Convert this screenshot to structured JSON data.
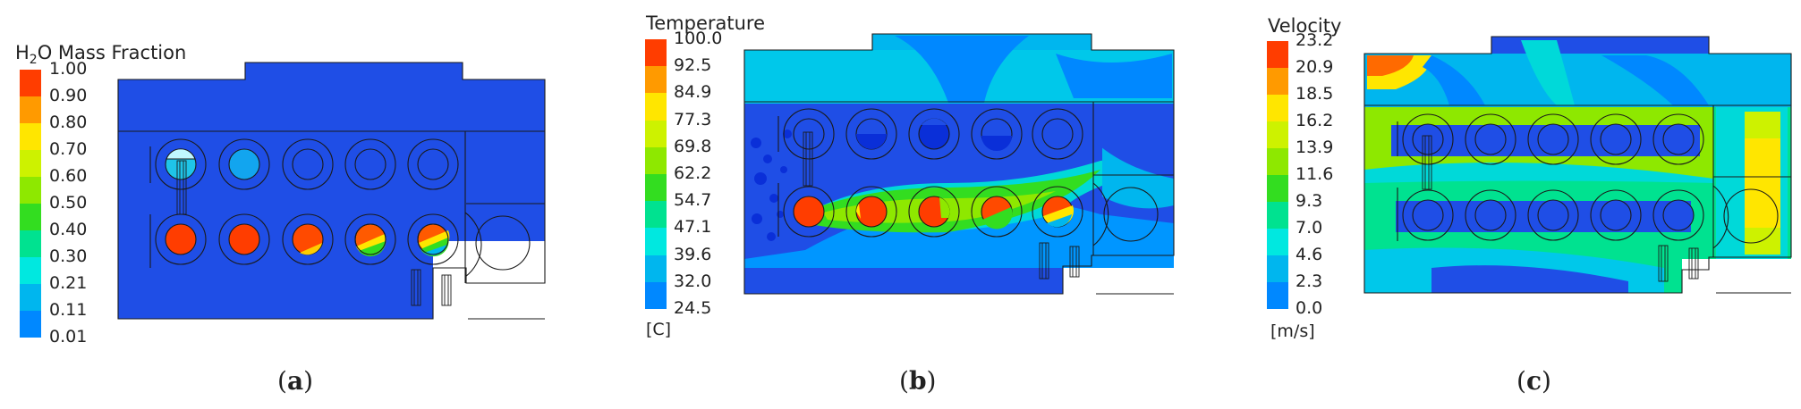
{
  "panels": [
    {
      "caption_letter": "a",
      "legend_title_pre": "H",
      "legend_title_sub": "2",
      "legend_title_post": "O Mass Fraction",
      "unit": "",
      "ticks": [
        "1.00",
        "0.90",
        "0.80",
        "0.70",
        "0.60",
        "0.50",
        "0.40",
        "0.30",
        "0.21",
        "0.11",
        "0.01"
      ],
      "colors": [
        "#ff3d00",
        "#ff9a00",
        "#ffe600",
        "#cdf200",
        "#8ee800",
        "#33dd20",
        "#00e290",
        "#00e8e0",
        "#00b6ee",
        "#0088ff"
      ]
    },
    {
      "caption_letter": "b",
      "legend_title": "Temperature",
      "unit": "[C]",
      "ticks": [
        "100.0",
        "92.5",
        "84.9",
        "77.3",
        "69.8",
        "62.2",
        "54.7",
        "47.1",
        "39.6",
        "32.0",
        "24.5"
      ],
      "colors": [
        "#ff3d00",
        "#ff9a00",
        "#ffe600",
        "#cdf200",
        "#8ee800",
        "#33dd20",
        "#00e290",
        "#00e8e0",
        "#00b6ee",
        "#0088ff"
      ]
    },
    {
      "caption_letter": "c",
      "legend_title": "Velocity",
      "unit": "[m/s]",
      "ticks": [
        "23.2",
        "20.9",
        "18.5",
        "16.2",
        "13.9",
        "11.6",
        "9.3",
        "7.0",
        "4.6",
        "2.3",
        "0.0"
      ],
      "colors": [
        "#ff3d00",
        "#ff9a00",
        "#ffe600",
        "#cdf200",
        "#8ee800",
        "#33dd20",
        "#00e290",
        "#00e8e0",
        "#00b6ee",
        "#0088ff"
      ]
    }
  ],
  "palette": {
    "background_blue": "#1f4ee6",
    "dark_blue": "#0a2fd8",
    "outline": "#1a1a1a"
  }
}
